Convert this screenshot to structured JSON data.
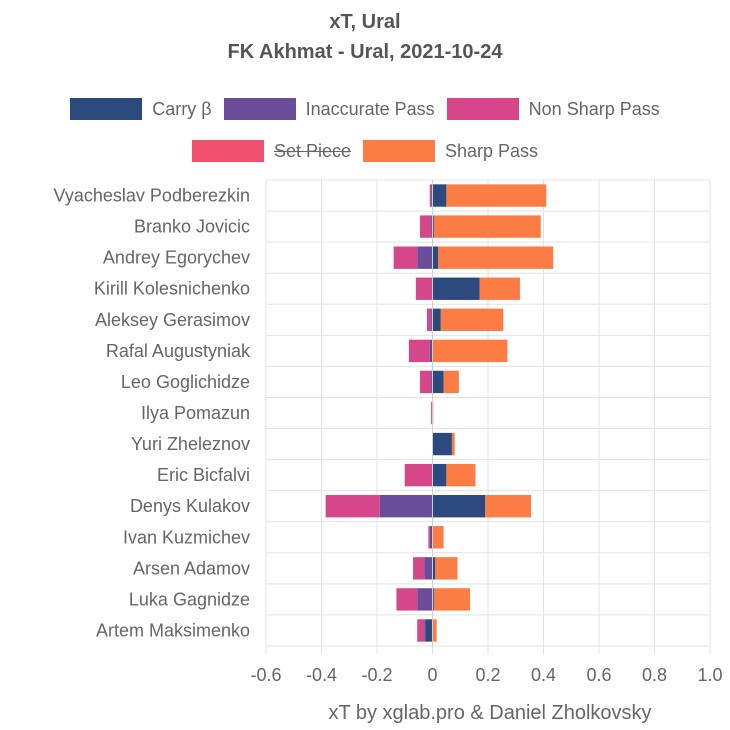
{
  "chart_data": {
    "type": "bar",
    "orientation": "horizontal",
    "stacked": true,
    "title": [
      "xT, Ural",
      "FK Akhmat - Ural, 2021-10-24"
    ],
    "xlabel": "",
    "ylabel": "",
    "footer": "xT by xglab.pro & Daniel Zholkovsky",
    "xlim": [
      -0.6,
      1.0
    ],
    "xticks": [
      "-0.6",
      "-0.4",
      "-0.2",
      "0",
      "0.2",
      "0.4",
      "0.6",
      "0.8",
      "1.0"
    ],
    "grid": true,
    "legend_position": "top",
    "categories": [
      "Vyacheslav Podberezkin",
      "Branko Jovicic",
      "Andrey Egorychev",
      "Kirill Kolesnichenko",
      "Aleksey Gerasimov",
      "Rafal Augustyniak",
      "Leo Goglichidze",
      "Ilya Pomazun",
      "Yuri Zheleznov",
      "Eric Bicfalvi",
      "Denys Kulakov",
      "Ivan Kuzmichev",
      "Arsen Adamov",
      "Luka Gagnidze",
      "Artem Maksimenko"
    ],
    "series": [
      {
        "name": "Carry β",
        "color": "#2c4a7e",
        "hidden": false,
        "values": [
          0.05,
          0.005,
          0.02,
          0.17,
          0.03,
          -0.005,
          0.04,
          0.0,
          0.07,
          0.05,
          0.19,
          -0.005,
          0.01,
          0.005,
          -0.025
        ]
      },
      {
        "name": "Inaccurate Pass",
        "color": "#6a4d9a",
        "hidden": false,
        "values": [
          -0.005,
          -0.005,
          -0.055,
          0.0,
          -0.005,
          -0.005,
          -0.005,
          0.0,
          0.0,
          0.0,
          -0.19,
          -0.005,
          -0.03,
          -0.055,
          -0.005
        ]
      },
      {
        "name": "Non Sharp Pass",
        "color": "#d6478a",
        "hidden": false,
        "values": [
          -0.005,
          -0.04,
          -0.085,
          -0.06,
          -0.015,
          -0.075,
          -0.04,
          -0.005,
          0.0,
          -0.1,
          -0.195,
          -0.005,
          -0.04,
          -0.075,
          -0.025
        ]
      },
      {
        "name": "Set Piece",
        "color": "#f0506e",
        "hidden": true,
        "values": [
          0,
          0,
          0,
          0,
          0,
          0,
          0,
          0,
          0,
          0,
          0,
          0,
          0,
          0,
          0
        ]
      },
      {
        "name": "Sharp Pass",
        "color": "#fb7c45",
        "hidden": false,
        "values": [
          0.36,
          0.385,
          0.415,
          0.145,
          0.225,
          0.27,
          0.055,
          0.003,
          0.01,
          0.105,
          0.165,
          0.04,
          0.08,
          0.13,
          0.015
        ]
      }
    ]
  }
}
